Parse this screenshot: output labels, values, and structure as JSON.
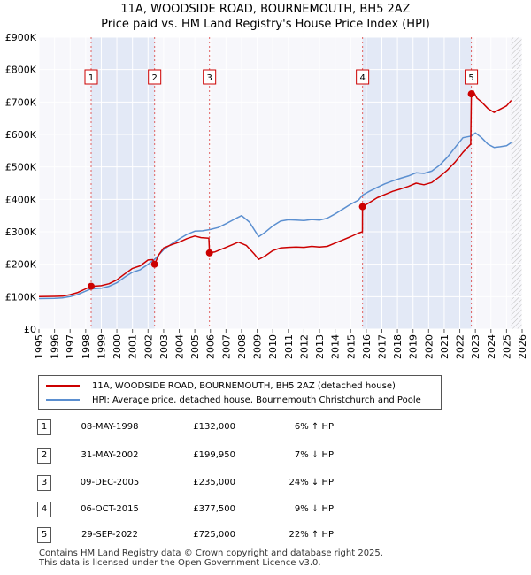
{
  "chart_data": {
    "type": "line",
    "title": "11A, WOODSIDE ROAD, BOURNEMOUTH, BH5 2AZ",
    "subtitle": "Price paid vs. HM Land Registry's House Price Index (HPI)",
    "xlim": [
      1995,
      2026
    ],
    "ylim": [
      0,
      900000
    ],
    "y_ticks": [
      {
        "value": 0,
        "label": "£0"
      },
      {
        "value": 100000,
        "label": "£100K"
      },
      {
        "value": 200000,
        "label": "£200K"
      },
      {
        "value": 300000,
        "label": "£300K"
      },
      {
        "value": 400000,
        "label": "£400K"
      },
      {
        "value": 500000,
        "label": "£500K"
      },
      {
        "value": 600000,
        "label": "£600K"
      },
      {
        "value": 700000,
        "label": "£700K"
      },
      {
        "value": 800000,
        "label": "£800K"
      },
      {
        "value": 900000,
        "label": "£900K"
      }
    ],
    "x_ticks": [
      "1995",
      "1996",
      "1997",
      "1998",
      "1999",
      "2000",
      "2001",
      "2002",
      "2003",
      "2004",
      "2005",
      "2006",
      "2007",
      "2008",
      "2009",
      "2010",
      "2011",
      "2012",
      "2013",
      "2014",
      "2015",
      "2016",
      "2017",
      "2018",
      "2019",
      "2020",
      "2021",
      "2022",
      "2023",
      "2024",
      "2025",
      "2026"
    ],
    "series": [
      {
        "name": "11A, WOODSIDE ROAD, BOURNEMOUTH, BH5 2AZ (detached house)",
        "color": "#cc0000",
        "points": [
          [
            1995.0,
            100000
          ],
          [
            1995.5,
            100500
          ],
          [
            1996.0,
            101000
          ],
          [
            1996.5,
            101500
          ],
          [
            1997.0,
            106000
          ],
          [
            1997.5,
            113000
          ],
          [
            1998.0,
            124000
          ],
          [
            1998.35,
            132000
          ],
          [
            1998.7,
            133000
          ],
          [
            1999.0,
            134000
          ],
          [
            1999.5,
            140000
          ],
          [
            2000.0,
            152000
          ],
          [
            2000.5,
            170000
          ],
          [
            2001.0,
            187000
          ],
          [
            2001.5,
            195000
          ],
          [
            2002.0,
            213000
          ],
          [
            2002.3,
            214000
          ],
          [
            2002.42,
            199950
          ],
          [
            2002.7,
            230000
          ],
          [
            2003.0,
            250000
          ],
          [
            2003.5,
            260000
          ],
          [
            2004.0,
            268000
          ],
          [
            2004.5,
            279000
          ],
          [
            2005.0,
            287000
          ],
          [
            2005.4,
            282000
          ],
          [
            2005.9,
            280000
          ],
          [
            2005.94,
            235000
          ],
          [
            2006.3,
            238000
          ],
          [
            2006.8,
            248000
          ],
          [
            2007.3,
            258000
          ],
          [
            2007.8,
            268000
          ],
          [
            2008.3,
            258000
          ],
          [
            2008.8,
            232000
          ],
          [
            2009.1,
            215000
          ],
          [
            2009.5,
            225000
          ],
          [
            2010.0,
            242000
          ],
          [
            2010.5,
            250000
          ],
          [
            2011.0,
            252000
          ],
          [
            2011.5,
            253000
          ],
          [
            2012.0,
            252000
          ],
          [
            2012.5,
            255000
          ],
          [
            2013.0,
            253000
          ],
          [
            2013.5,
            255000
          ],
          [
            2014.0,
            265000
          ],
          [
            2014.5,
            275000
          ],
          [
            2015.0,
            285000
          ],
          [
            2015.5,
            296000
          ],
          [
            2015.75,
            300000
          ],
          [
            2015.76,
            377500
          ],
          [
            2016.2,
            390000
          ],
          [
            2016.7,
            405000
          ],
          [
            2017.2,
            415000
          ],
          [
            2017.7,
            425000
          ],
          [
            2018.2,
            432000
          ],
          [
            2018.7,
            440000
          ],
          [
            2019.2,
            450000
          ],
          [
            2019.7,
            445000
          ],
          [
            2020.2,
            452000
          ],
          [
            2020.7,
            470000
          ],
          [
            2021.2,
            490000
          ],
          [
            2021.7,
            515000
          ],
          [
            2022.2,
            545000
          ],
          [
            2022.7,
            570000
          ],
          [
            2022.74,
            725000
          ],
          [
            2022.85,
            735000
          ],
          [
            2023.1,
            712000
          ],
          [
            2023.4,
            700000
          ],
          [
            2023.8,
            680000
          ],
          [
            2024.2,
            668000
          ],
          [
            2024.6,
            678000
          ],
          [
            2025.0,
            688000
          ],
          [
            2025.3,
            705000
          ]
        ]
      },
      {
        "name": "HPI: Average price, detached house, Bournemouth Christchurch and Poole",
        "color": "#5b8fd0",
        "points": [
          [
            1995.0,
            94000
          ],
          [
            1995.5,
            94500
          ],
          [
            1996.0,
            95000
          ],
          [
            1996.5,
            96000
          ],
          [
            1997.0,
            100000
          ],
          [
            1997.5,
            107000
          ],
          [
            1998.0,
            117000
          ],
          [
            1998.35,
            124000
          ],
          [
            1999.0,
            126000
          ],
          [
            1999.5,
            132000
          ],
          [
            2000.0,
            143000
          ],
          [
            2000.5,
            160000
          ],
          [
            2001.0,
            175000
          ],
          [
            2001.5,
            183000
          ],
          [
            2002.0,
            200000
          ],
          [
            2002.42,
            215000
          ],
          [
            2003.0,
            245000
          ],
          [
            2003.5,
            262000
          ],
          [
            2004.0,
            278000
          ],
          [
            2004.5,
            292000
          ],
          [
            2005.0,
            302000
          ],
          [
            2005.5,
            303000
          ],
          [
            2006.0,
            307000
          ],
          [
            2006.5,
            313000
          ],
          [
            2007.0,
            325000
          ],
          [
            2007.5,
            338000
          ],
          [
            2008.0,
            350000
          ],
          [
            2008.5,
            330000
          ],
          [
            2009.1,
            285000
          ],
          [
            2009.5,
            298000
          ],
          [
            2010.0,
            318000
          ],
          [
            2010.5,
            333000
          ],
          [
            2011.0,
            337000
          ],
          [
            2011.5,
            336000
          ],
          [
            2012.0,
            335000
          ],
          [
            2012.5,
            338000
          ],
          [
            2013.0,
            336000
          ],
          [
            2013.5,
            342000
          ],
          [
            2014.0,
            355000
          ],
          [
            2014.5,
            370000
          ],
          [
            2015.0,
            385000
          ],
          [
            2015.5,
            398000
          ],
          [
            2015.76,
            413000
          ],
          [
            2016.2,
            425000
          ],
          [
            2016.7,
            437000
          ],
          [
            2017.2,
            448000
          ],
          [
            2017.7,
            457000
          ],
          [
            2018.2,
            465000
          ],
          [
            2018.7,
            472000
          ],
          [
            2019.2,
            482000
          ],
          [
            2019.7,
            480000
          ],
          [
            2020.2,
            487000
          ],
          [
            2020.7,
            505000
          ],
          [
            2021.2,
            530000
          ],
          [
            2021.7,
            560000
          ],
          [
            2022.2,
            590000
          ],
          [
            2022.74,
            595000
          ],
          [
            2023.0,
            605000
          ],
          [
            2023.4,
            590000
          ],
          [
            2023.8,
            570000
          ],
          [
            2024.2,
            560000
          ],
          [
            2024.6,
            562000
          ],
          [
            2025.0,
            565000
          ],
          [
            2025.3,
            575000
          ]
        ]
      }
    ],
    "transactions": [
      {
        "label": "1",
        "x": 1998.35,
        "price": 132000
      },
      {
        "label": "2",
        "x": 2002.42,
        "price": 199950
      },
      {
        "label": "3",
        "x": 2005.94,
        "price": 235000
      },
      {
        "label": "4",
        "x": 2015.76,
        "price": 377500
      },
      {
        "label": "5",
        "x": 2022.74,
        "price": 725000
      }
    ],
    "shaded_ranges": [
      [
        1998.35,
        2002.42
      ],
      [
        2015.76,
        2022.74
      ]
    ],
    "projection_start": 2025.3
  },
  "legend": {
    "property": "11A, WOODSIDE ROAD, BOURNEMOUTH, BH5 2AZ (detached house)",
    "hpi": "HPI: Average price, detached house, Bournemouth Christchurch and Poole"
  },
  "table": [
    {
      "num": "1",
      "date": "08-MAY-1998",
      "price": "£132,000",
      "hpi": "6% ↑ HPI"
    },
    {
      "num": "2",
      "date": "31-MAY-2002",
      "price": "£199,950",
      "hpi": "7% ↓ HPI"
    },
    {
      "num": "3",
      "date": "09-DEC-2005",
      "price": "£235,000",
      "hpi": "24% ↓ HPI"
    },
    {
      "num": "4",
      "date": "06-OCT-2015",
      "price": "£377,500",
      "hpi": "9% ↓ HPI"
    },
    {
      "num": "5",
      "date": "29-SEP-2022",
      "price": "£725,000",
      "hpi": "22% ↑ HPI"
    }
  ],
  "footer": {
    "line1": "Contains HM Land Registry data © Crown copyright and database right 2025.",
    "line2": "This data is licensed under the Open Government Licence v3.0."
  }
}
